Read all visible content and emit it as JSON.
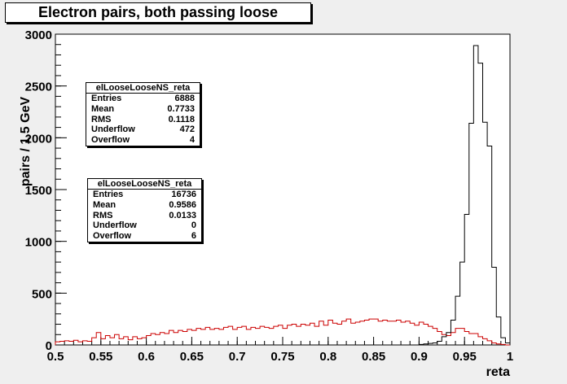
{
  "chart_data": {
    "type": "histogram",
    "title": "Electron pairs, both passing loose",
    "xlabel": "reta",
    "ylabel": "pairs / 1.5 GeV",
    "xlim": [
      0.5,
      1.0
    ],
    "ylim": [
      0,
      3000
    ],
    "xticks": [
      "0.5",
      "0.55",
      "0.6",
      "0.65",
      "0.7",
      "0.75",
      "0.8",
      "0.85",
      "0.9",
      "0.95",
      "1"
    ],
    "yticks": [
      "0",
      "500",
      "1000",
      "1500",
      "2000",
      "2500",
      "3000"
    ],
    "bin_width": 0.005,
    "series": [
      {
        "name": "elLooseLooseNS_reta",
        "color": "#000000",
        "bins": [
          [
            0.895,
            0
          ],
          [
            0.9,
            5
          ],
          [
            0.905,
            10
          ],
          [
            0.91,
            15
          ],
          [
            0.915,
            20
          ],
          [
            0.92,
            35
          ],
          [
            0.925,
            80
          ],
          [
            0.93,
            120
          ],
          [
            0.935,
            240
          ],
          [
            0.94,
            470
          ],
          [
            0.945,
            800
          ],
          [
            0.95,
            1260
          ],
          [
            0.955,
            2140
          ],
          [
            0.96,
            2890
          ],
          [
            0.965,
            2720
          ],
          [
            0.97,
            2150
          ],
          [
            0.975,
            1920
          ],
          [
            0.98,
            750
          ],
          [
            0.985,
            270
          ],
          [
            0.99,
            70
          ],
          [
            0.995,
            20
          ]
        ]
      },
      {
        "name": "elLooseLooseNS_reta",
        "color": "#cc0000",
        "bins": [
          [
            0.5,
            30
          ],
          [
            0.505,
            35
          ],
          [
            0.51,
            40
          ],
          [
            0.515,
            35
          ],
          [
            0.52,
            45
          ],
          [
            0.525,
            30
          ],
          [
            0.53,
            40
          ],
          [
            0.535,
            35
          ],
          [
            0.54,
            70
          ],
          [
            0.545,
            120
          ],
          [
            0.55,
            60
          ],
          [
            0.555,
            90
          ],
          [
            0.56,
            70
          ],
          [
            0.565,
            100
          ],
          [
            0.57,
            60
          ],
          [
            0.575,
            80
          ],
          [
            0.58,
            50
          ],
          [
            0.585,
            80
          ],
          [
            0.59,
            60
          ],
          [
            0.595,
            70
          ],
          [
            0.6,
            90
          ],
          [
            0.605,
            110
          ],
          [
            0.61,
            100
          ],
          [
            0.615,
            120
          ],
          [
            0.62,
            110
          ],
          [
            0.625,
            140
          ],
          [
            0.63,
            120
          ],
          [
            0.635,
            140
          ],
          [
            0.64,
            130
          ],
          [
            0.645,
            150
          ],
          [
            0.65,
            140
          ],
          [
            0.655,
            160
          ],
          [
            0.66,
            150
          ],
          [
            0.665,
            170
          ],
          [
            0.67,
            150
          ],
          [
            0.675,
            160
          ],
          [
            0.68,
            150
          ],
          [
            0.685,
            170
          ],
          [
            0.69,
            180
          ],
          [
            0.695,
            150
          ],
          [
            0.7,
            170
          ],
          [
            0.705,
            180
          ],
          [
            0.71,
            150
          ],
          [
            0.715,
            170
          ],
          [
            0.72,
            160
          ],
          [
            0.725,
            180
          ],
          [
            0.73,
            170
          ],
          [
            0.735,
            160
          ],
          [
            0.74,
            180
          ],
          [
            0.745,
            190
          ],
          [
            0.75,
            160
          ],
          [
            0.755,
            190
          ],
          [
            0.76,
            200
          ],
          [
            0.765,
            180
          ],
          [
            0.77,
            200
          ],
          [
            0.775,
            190
          ],
          [
            0.78,
            210
          ],
          [
            0.785,
            180
          ],
          [
            0.79,
            230
          ],
          [
            0.795,
            190
          ],
          [
            0.8,
            240
          ],
          [
            0.805,
            210
          ],
          [
            0.81,
            200
          ],
          [
            0.815,
            230
          ],
          [
            0.82,
            250
          ],
          [
            0.825,
            210
          ],
          [
            0.83,
            220
          ],
          [
            0.835,
            230
          ],
          [
            0.84,
            240
          ],
          [
            0.845,
            250
          ],
          [
            0.85,
            250
          ],
          [
            0.855,
            230
          ],
          [
            0.86,
            240
          ],
          [
            0.865,
            230
          ],
          [
            0.87,
            230
          ],
          [
            0.875,
            240
          ],
          [
            0.88,
            220
          ],
          [
            0.885,
            230
          ],
          [
            0.89,
            210
          ],
          [
            0.895,
            190
          ],
          [
            0.9,
            220
          ],
          [
            0.905,
            200
          ],
          [
            0.91,
            180
          ],
          [
            0.915,
            160
          ],
          [
            0.92,
            130
          ],
          [
            0.925,
            100
          ],
          [
            0.93,
            90
          ],
          [
            0.935,
            120
          ],
          [
            0.94,
            160
          ],
          [
            0.945,
            160
          ],
          [
            0.95,
            130
          ],
          [
            0.955,
            110
          ],
          [
            0.96,
            110
          ],
          [
            0.965,
            80
          ],
          [
            0.97,
            60
          ],
          [
            0.975,
            40
          ],
          [
            0.98,
            20
          ],
          [
            0.985,
            10
          ],
          [
            0.99,
            5
          ],
          [
            0.995,
            0
          ]
        ]
      }
    ],
    "stat_boxes": [
      {
        "title": "elLooseLooseNS_reta",
        "rows": [
          {
            "label": "Entries",
            "value": "6888"
          },
          {
            "label": "Mean",
            "value": "0.7733"
          },
          {
            "label": "RMS",
            "value": "0.1118"
          },
          {
            "label": "Underflow",
            "value": "472"
          },
          {
            "label": "Overflow",
            "value": "4"
          }
        ]
      },
      {
        "title": "elLooseLooseNS_reta",
        "rows": [
          {
            "label": "Entries",
            "value": "16736"
          },
          {
            "label": "Mean",
            "value": "0.9586"
          },
          {
            "label": "RMS",
            "value": "0.0133"
          },
          {
            "label": "Underflow",
            "value": "0"
          },
          {
            "label": "Overflow",
            "value": "6"
          }
        ]
      }
    ]
  }
}
